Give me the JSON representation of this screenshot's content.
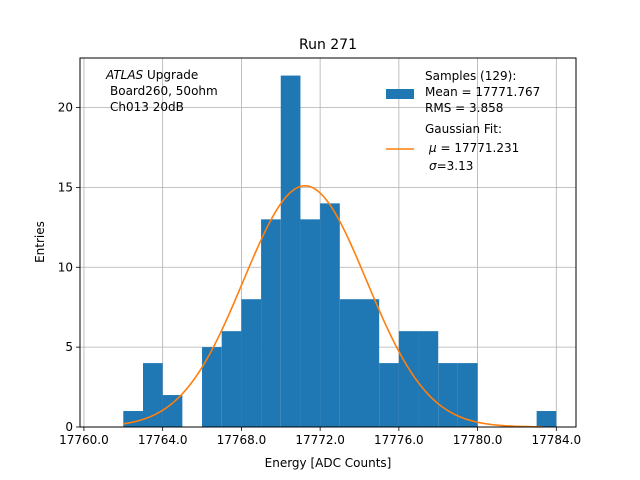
{
  "chart_data": {
    "type": "bar",
    "title": "Run 271",
    "xlabel": "Energy [ADC Counts]",
    "ylabel": "Entries",
    "xlim": [
      17759.8,
      17785.0
    ],
    "ylim": [
      0,
      23.1
    ],
    "grid": true,
    "xticks": [
      17760,
      17764,
      17768,
      17772,
      17776,
      17780,
      17784
    ],
    "xtick_labels": [
      "17760.0",
      "17764.0",
      "17768.0",
      "17772.0",
      "17776.0",
      "17780.0",
      "17784.0"
    ],
    "yticks": [
      0,
      5,
      10,
      15,
      20
    ],
    "ytick_labels": [
      "0",
      "5",
      "10",
      "15",
      "20"
    ],
    "bin_edges": [
      17762.0,
      17763.0,
      17764.0,
      17765.0,
      17766.0,
      17767.0,
      17768.0,
      17769.0,
      17770.0,
      17771.0,
      17772.0,
      17773.0,
      17774.0,
      17775.0,
      17776.0,
      17777.0,
      17778.0,
      17779.0,
      17780.0,
      17781.0,
      17782.0,
      17783.0,
      17784.0
    ],
    "values": [
      1,
      4,
      2,
      0,
      5,
      6,
      8,
      13,
      22,
      13,
      14,
      8,
      8,
      4,
      6,
      6,
      4,
      4,
      0,
      0,
      0,
      1
    ],
    "fit": {
      "mu": 17771.231,
      "sigma": 3.13,
      "amplitude": 15.1,
      "x_range": [
        17762.0,
        17783.3
      ]
    },
    "annotation": [
      "ATLAS",
      " Upgrade",
      "Board260, 50ohm",
      "Ch013 20dB"
    ],
    "legend_position": "top-right",
    "legend": {
      "samples": [
        "Samples (129):",
        " Mean = 17771.767",
        " RMS = 3.858"
      ],
      "fit": [
        "Gaussian Fit:",
        "μ",
        " = 17771.231",
        "σ",
        "=3.13"
      ]
    },
    "colors": {
      "bars": "#1f77b4",
      "fit": "#ff7f0e",
      "grid": "#b0b0b0"
    }
  }
}
